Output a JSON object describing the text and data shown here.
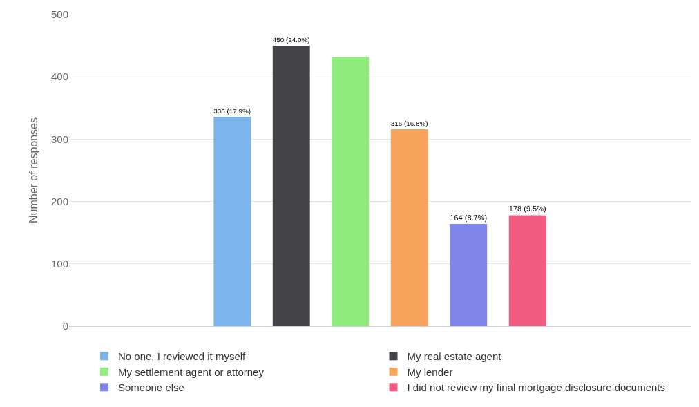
{
  "chart_data": {
    "type": "bar",
    "ylabel": "Number of responses",
    "categories": [
      null
    ],
    "series": [
      {
        "name": "No one, I reviewed it myself",
        "color": "#7cb5ec",
        "values": [
          336
        ],
        "value_labels": [
          "336 (17.9%)"
        ]
      },
      {
        "name": "My real estate agent",
        "color": "#434348",
        "values": [
          450
        ],
        "value_labels": [
          "450 (24.0%)"
        ]
      },
      {
        "name": "My settlement agent or attorney",
        "color": "#90ed7d",
        "values": [
          432
        ],
        "value_labels": [
          null
        ]
      },
      {
        "name": "My lender",
        "color": "#f7a35c",
        "values": [
          316
        ],
        "value_labels": [
          "316 (16.8%)"
        ]
      },
      {
        "name": "Someone else",
        "color": "#8085e9",
        "values": [
          164
        ],
        "value_labels": [
          "164 (8.7%)"
        ]
      },
      {
        "name": "I did not review my final mortgage disclosure documents",
        "color": "#f15c80",
        "values": [
          178
        ],
        "value_labels": [
          "178 (9.5%)"
        ]
      }
    ],
    "ylim": [
      0,
      500
    ],
    "yticks": [
      0,
      100,
      200,
      300,
      400,
      500
    ],
    "grid": "y",
    "legend": "bottom"
  }
}
